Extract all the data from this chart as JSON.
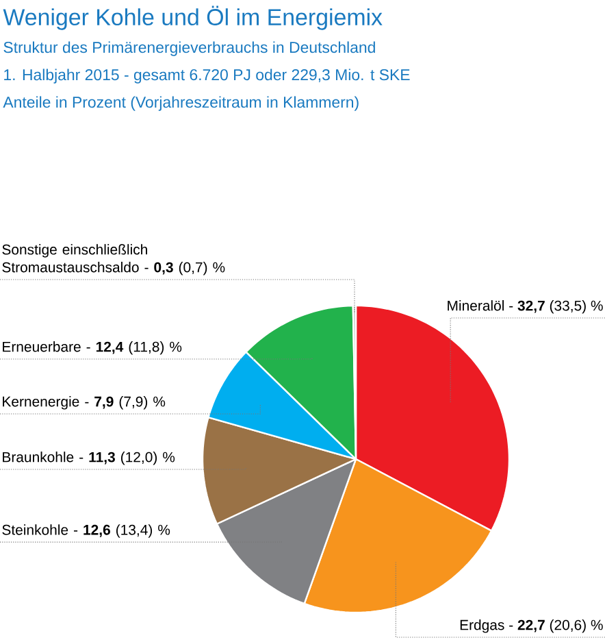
{
  "chart_data": {
    "type": "pie",
    "title": "Weniger Kohle und Öl im Energiemix",
    "subtitle": "Struktur des Primärenergieverbrauchs in Deutschland",
    "annotations": [
      "1. Halbjahr 2015 - gesamt 6.720 PJ oder 229,3 Mio. t SKE",
      "Anteile in Prozent (Vorjahreszeitraum in Klammern)"
    ],
    "categories": [
      "Mineralöl",
      "Erdgas",
      "Steinkohle",
      "Braunkohle",
      "Kernenergie",
      "Erneuerbare",
      "Sonstige einschließlich Stromaustauschsaldo"
    ],
    "values": [
      32.7,
      22.7,
      12.6,
      11.3,
      7.9,
      12.4,
      0.3
    ],
    "value_labels": [
      "- **32,7** (33,5) %",
      "- **22,7** (20,6) %",
      "- **12,6** (13,4) %",
      "- **11,3** (12,0) %",
      "- **7,9** (7,9) %",
      "- **12,4** (11,8) %",
      "- **0,3** (0,7) %"
    ],
    "colors": [
      "#ec1c24",
      "#f7941d",
      "#808184",
      "#9a7246",
      "#00aeef",
      "#22b24c",
      "#c8c8c8"
    ]
  }
}
